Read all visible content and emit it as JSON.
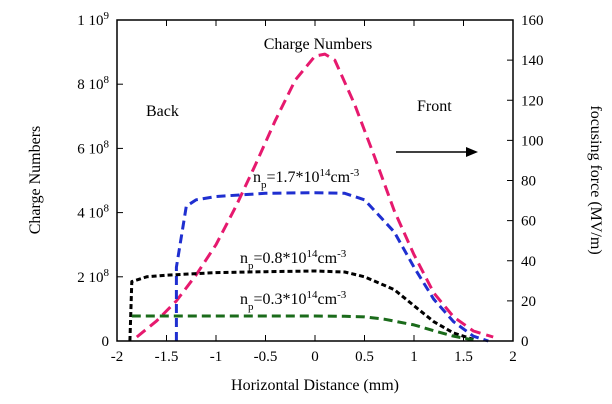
{
  "chart_data": {
    "type": "line",
    "title": "Charge Numbers",
    "xlabel": "Horizontal Distance (mm)",
    "ylabel_left": "Charge Numbers",
    "ylabel_right": "focusing force (MV/m)",
    "xlim": [
      -2,
      2
    ],
    "ylim_left": [
      0,
      1000000000
    ],
    "ylim_right": [
      0,
      160
    ],
    "x_ticks": [
      "-2",
      "-1.5",
      "-1",
      "-0.5",
      "0",
      "0.5",
      "1",
      "1.5",
      "2"
    ],
    "y_left_ticks": [
      {
        "mant": "0",
        "exp": ""
      },
      {
        "mant": "2 10",
        "exp": "8"
      },
      {
        "mant": "4 10",
        "exp": "8"
      },
      {
        "mant": "6 10",
        "exp": "8"
      },
      {
        "mant": "8 10",
        "exp": "8"
      },
      {
        "mant": "1 10",
        "exp": "9"
      }
    ],
    "y_right_ticks": [
      "0",
      "20",
      "40",
      "60",
      "80",
      "100",
      "120",
      "140",
      "160"
    ],
    "annotations": {
      "back": "Back",
      "front": "Front",
      "np_high": {
        "base": "n",
        "sub": "p",
        "mid": "=1.7*10",
        "sup": "14",
        "unit": "cm",
        "unit_sup": "-3"
      },
      "np_mid": {
        "base": "n",
        "sub": "p",
        "mid": "=0.8*10",
        "sup": "14",
        "unit": "cm",
        "unit_sup": "-3"
      },
      "np_low": {
        "base": "n",
        "sub": "p",
        "mid": "=0.3*10",
        "sup": "14",
        "unit": "cm",
        "unit_sup": "-3"
      }
    },
    "series": [
      {
        "axis": "right",
        "color": "#e6196e",
        "x": [
          -1.8,
          -1.6,
          -1.4,
          -1.2,
          -1.0,
          -0.8,
          -0.6,
          -0.4,
          -0.2,
          0.0,
          0.1,
          0.2,
          0.4,
          0.6,
          0.8,
          1.0,
          1.2,
          1.4,
          1.6,
          1.8
        ],
        "y": [
          2,
          10,
          20,
          33,
          48,
          67,
          88,
          110,
          130,
          142,
          143,
          140,
          118,
          92,
          65,
          43,
          24,
          12,
          5,
          2
        ]
      },
      {
        "axis": "left",
        "color": "#1f2fd0",
        "x": [
          -1.4,
          -1.4,
          -1.3,
          -1.2,
          -1.0,
          -0.5,
          0.0,
          0.3,
          0.5,
          0.8,
          1.0,
          1.2,
          1.4,
          1.6,
          1.75
        ],
        "y": [
          0,
          230000000,
          420000000,
          440000000,
          450000000,
          460000000,
          462000000,
          460000000,
          440000000,
          340000000,
          230000000,
          130000000,
          60000000,
          15000000,
          0
        ]
      },
      {
        "axis": "left",
        "color": "#000000",
        "x": [
          -1.87,
          -1.85,
          -1.7,
          -1.5,
          -1.0,
          -0.5,
          0.0,
          0.3,
          0.5,
          0.8,
          1.0,
          1.2,
          1.4,
          1.6
        ],
        "y": [
          0,
          185000000,
          200000000,
          205000000,
          213000000,
          216000000,
          218000000,
          215000000,
          200000000,
          160000000,
          110000000,
          60000000,
          25000000,
          5000000
        ]
      },
      {
        "axis": "left",
        "color": "#1a6b1a",
        "x": [
          -1.85,
          -1.5,
          -1.0,
          -0.5,
          0.0,
          0.3,
          0.5,
          0.7,
          1.0,
          1.2,
          1.4,
          1.6
        ],
        "y": [
          78000000,
          78000000,
          78000000,
          78000000,
          78000000,
          77000000,
          75000000,
          68000000,
          50000000,
          32000000,
          15000000,
          3000000
        ]
      }
    ]
  }
}
